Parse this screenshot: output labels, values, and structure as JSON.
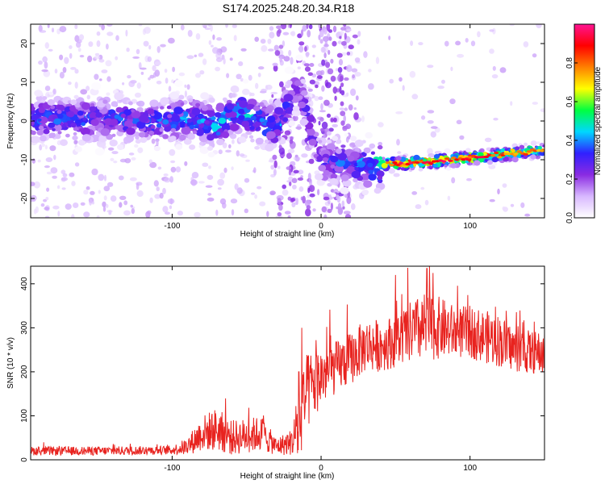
{
  "title": "S174.2025.248.20.34.R18",
  "colors": {
    "snr_line": "#e8231f",
    "frame": "#000000"
  },
  "chart_data": [
    {
      "type": "heatmap",
      "name": "spectrogram",
      "xlabel": "Height of straight line (km)",
      "ylabel": "Frequency (Hz)",
      "xlim": [
        -195,
        150
      ],
      "ylim": [
        -25,
        25
      ],
      "xticks": [
        -100,
        0,
        100
      ],
      "yticks": [
        -20,
        -10,
        0,
        10,
        20
      ],
      "colorbar": {
        "label": "Normalized spectral amplitude",
        "range": [
          0,
          1
        ],
        "ticks": [
          "0.0",
          "0.2",
          "0.4",
          "0.6",
          "0.8"
        ],
        "colors": [
          "#ffffff",
          "#d8b8ff",
          "#8a2be2",
          "#3020ff",
          "#00d8ff",
          "#00ff40",
          "#ffff00",
          "#ff8000",
          "#ff0000",
          "#ff1493"
        ]
      },
      "ridge": [
        {
          "x": -190,
          "f": 0.5,
          "amp": 0.35
        },
        {
          "x": -150,
          "f": 0.5,
          "amp": 0.35
        },
        {
          "x": -110,
          "f": 0.0,
          "amp": 0.35
        },
        {
          "x": -85,
          "f": 0.5,
          "amp": 0.4
        },
        {
          "x": -70,
          "f": -1.0,
          "amp": 0.45
        },
        {
          "x": -55,
          "f": 2.5,
          "amp": 0.4
        },
        {
          "x": -45,
          "f": 0.5,
          "amp": 0.45
        },
        {
          "x": -30,
          "f": -1.5,
          "amp": 0.4
        },
        {
          "x": -15,
          "f": 9.0,
          "amp": 0.25
        },
        {
          "x": 0,
          "f": -10.5,
          "amp": 0.3
        },
        {
          "x": 30,
          "f": -11.5,
          "amp": 0.4
        },
        {
          "x": 50,
          "f": -11.0,
          "amp": 0.85
        },
        {
          "x": 75,
          "f": -10.5,
          "amp": 0.85
        },
        {
          "x": 100,
          "f": -9.5,
          "amp": 0.85
        },
        {
          "x": 125,
          "f": -8.5,
          "amp": 0.8
        },
        {
          "x": 150,
          "f": -7.5,
          "amp": 0.7
        }
      ]
    },
    {
      "type": "line",
      "name": "snr",
      "xlabel": "Height of straight line (km)",
      "ylabel": "SNR (10 * v/v)",
      "xlim": [
        -195,
        150
      ],
      "ylim": [
        0,
        440
      ],
      "xticks": [
        -100,
        0,
        100
      ],
      "yticks": [
        0,
        100,
        200,
        300,
        400
      ],
      "series": [
        {
          "name": "SNR",
          "envelope_x": [
            -195,
            -150,
            -100,
            -90,
            -80,
            -70,
            -60,
            -50,
            -40,
            -30,
            -20,
            -15,
            -10,
            0,
            10,
            20,
            30,
            40,
            50,
            60,
            70,
            80,
            90,
            100,
            110,
            120,
            130,
            140,
            150
          ],
          "envelope_mean": [
            20,
            20,
            22,
            30,
            60,
            70,
            50,
            55,
            60,
            30,
            40,
            70,
            150,
            190,
            210,
            230,
            260,
            260,
            270,
            290,
            300,
            300,
            290,
            290,
            280,
            270,
            250,
            245,
            240
          ],
          "envelope_spread": [
            10,
            10,
            10,
            20,
            40,
            50,
            40,
            40,
            40,
            20,
            30,
            80,
            90,
            70,
            60,
            60,
            60,
            60,
            60,
            70,
            80,
            70,
            60,
            60,
            60,
            60,
            50,
            50,
            50
          ],
          "peaks": [
            {
              "x": -15,
              "y": 200
            },
            {
              "x": -13,
              "y": 300
            },
            {
              "x": 50,
              "y": 420
            },
            {
              "x": 71,
              "y": 435
            }
          ]
        }
      ]
    }
  ]
}
